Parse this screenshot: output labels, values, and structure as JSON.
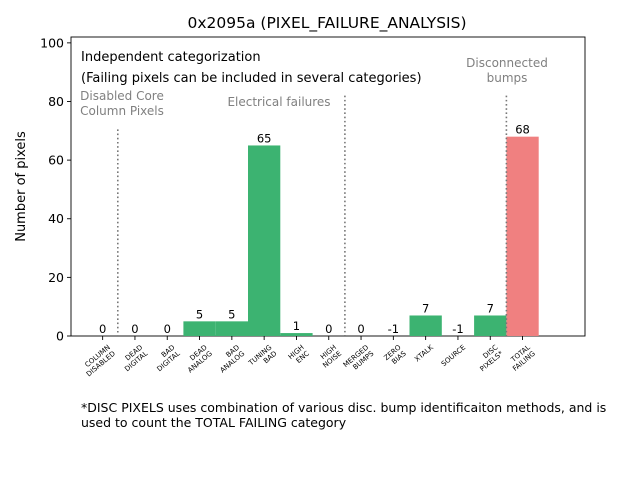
{
  "chart_data": {
    "type": "bar",
    "title": "0x2095a (PIXEL_FAILURE_ANALYSIS)",
    "xlabel": "",
    "ylabel": "Number of pixels",
    "ylim": [
      0,
      102
    ],
    "yticks": [
      0,
      20,
      40,
      60,
      80,
      100
    ],
    "grid": false,
    "categories": [
      "COLUMN\nDISABLED",
      "DEAD\nDIGITAL",
      "BAD\nDIGITAL",
      "DEAD\nANALOG",
      "BAD\nANALOG",
      "TUNING\nBAD",
      "HIGH\nENC",
      "HIGH\nNOISE",
      "MERGED\nBUMPS",
      "ZERO\nBIAS",
      "XTALK",
      "SOURCE",
      "DISC\nPIXELS*",
      "TOTAL\nFAILING"
    ],
    "values": [
      0,
      0,
      0,
      5,
      5,
      65,
      1,
      0,
      0,
      -1,
      7,
      -1,
      7,
      68
    ],
    "value_labels": [
      "0",
      "0",
      "0",
      "5",
      "5",
      "65",
      "1",
      "0",
      "0",
      "-1",
      "7",
      "-1",
      "7",
      "68"
    ],
    "colors": [
      "#3cb371",
      "#3cb371",
      "#3cb371",
      "#3cb371",
      "#3cb371",
      "#3cb371",
      "#3cb371",
      "#3cb371",
      "#3cb371",
      "#3cb371",
      "#3cb371",
      "#3cb371",
      "#3cb371",
      "#f08080"
    ],
    "separators_after_index": [
      0,
      7,
      12
    ],
    "group_labels": [
      {
        "text": "Disabled Core\nColumn Pixels"
      },
      {
        "text": "Electrical failures"
      },
      {
        "text": "Disconnected\nbumps"
      }
    ],
    "annotations": [
      "Independent categorization",
      "(Failing pixels can be included in several categories)"
    ]
  },
  "footnote": "*DISC PIXELS uses combination of various disc. bump identificaiton methods, and is used to count the TOTAL FAILING category"
}
